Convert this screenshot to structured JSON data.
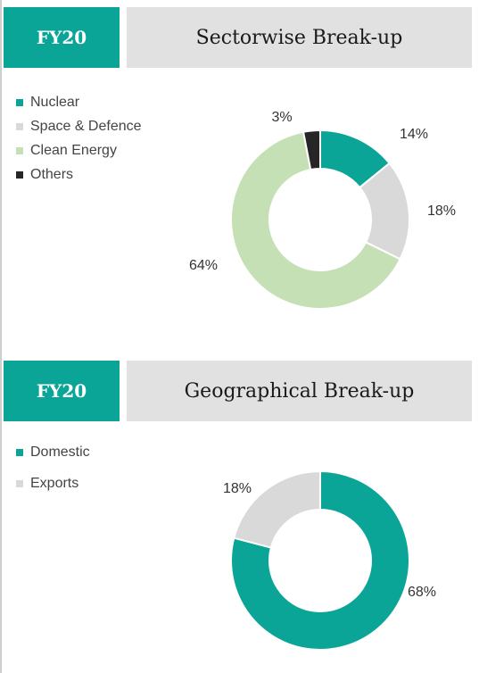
{
  "colors": {
    "teal": "#0aa596",
    "light_gray": "#d9d9d9",
    "light_green": "#c5e0b4",
    "dark": "#262626",
    "header_gray": "#e1e1e1"
  },
  "chart_data": [
    {
      "type": "pie",
      "variant": "donut",
      "tag": "FY20",
      "title": "Sectorwise Break-up",
      "legend_position": "left",
      "categories": [
        "Nuclear",
        "Space & Defence",
        "Clean Energy",
        "Others"
      ],
      "values": [
        14,
        18,
        64,
        3
      ],
      "labels": [
        "14%",
        "18%",
        "64%",
        "3%"
      ],
      "colors": [
        "#0aa596",
        "#d9d9d9",
        "#c5e0b4",
        "#262626"
      ]
    },
    {
      "type": "pie",
      "variant": "donut",
      "tag": "FY20",
      "title": "Geographical Break-up",
      "legend_position": "left",
      "categories": [
        "Domestic",
        "Exports"
      ],
      "values": [
        68,
        18
      ],
      "labels": [
        "68%",
        "18%"
      ],
      "colors": [
        "#0aa596",
        "#d9d9d9"
      ]
    }
  ]
}
